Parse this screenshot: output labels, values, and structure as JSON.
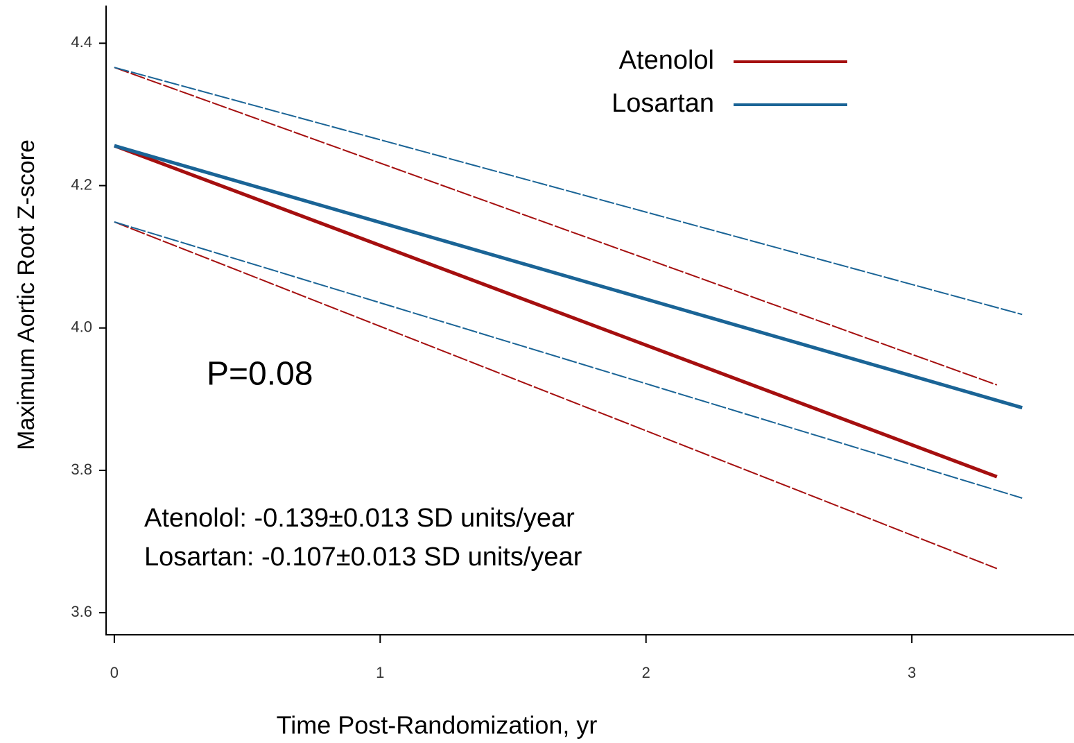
{
  "chart_data": {
    "type": "line",
    "x_label": "Time Post-Randomization, yr",
    "y_label": "Maximum Aortic Root Z-score",
    "annotations": [
      "P=0.08",
      "Atenolol:  -0.139±0.013 SD units/year",
      "Losartan: -0.107±0.013 SD units/year"
    ],
    "xlim": [
      -0.031,
      3.61
    ],
    "ylim": [
      3.569,
      4.451
    ],
    "xticks": [
      0,
      1,
      2,
      3
    ],
    "yticks": [
      {
        "value": 3.6,
        "label": "3.6"
      },
      {
        "value": 3.8,
        "label": "3.8"
      },
      {
        "value": 4,
        "label": "4.0"
      },
      {
        "value": 4.2,
        "label": "4.2"
      },
      {
        "value": 4.4,
        "label": "4.4"
      }
    ],
    "legend": "top-right",
    "series": [
      {
        "name": "Atenolol",
        "color": "#a50f0f",
        "x": [
          0,
          3.32
        ],
        "values": [
          4.256,
          3.791
        ],
        "upper": [
          4.366,
          3.92
        ],
        "lower": [
          4.149,
          3.662
        ]
      },
      {
        "name": "Losartan",
        "color": "#1a6496",
        "x": [
          0,
          3.415
        ],
        "values": [
          4.256,
          3.888
        ],
        "upper": [
          4.366,
          4.019
        ],
        "lower": [
          4.149,
          3.761
        ]
      }
    ]
  }
}
